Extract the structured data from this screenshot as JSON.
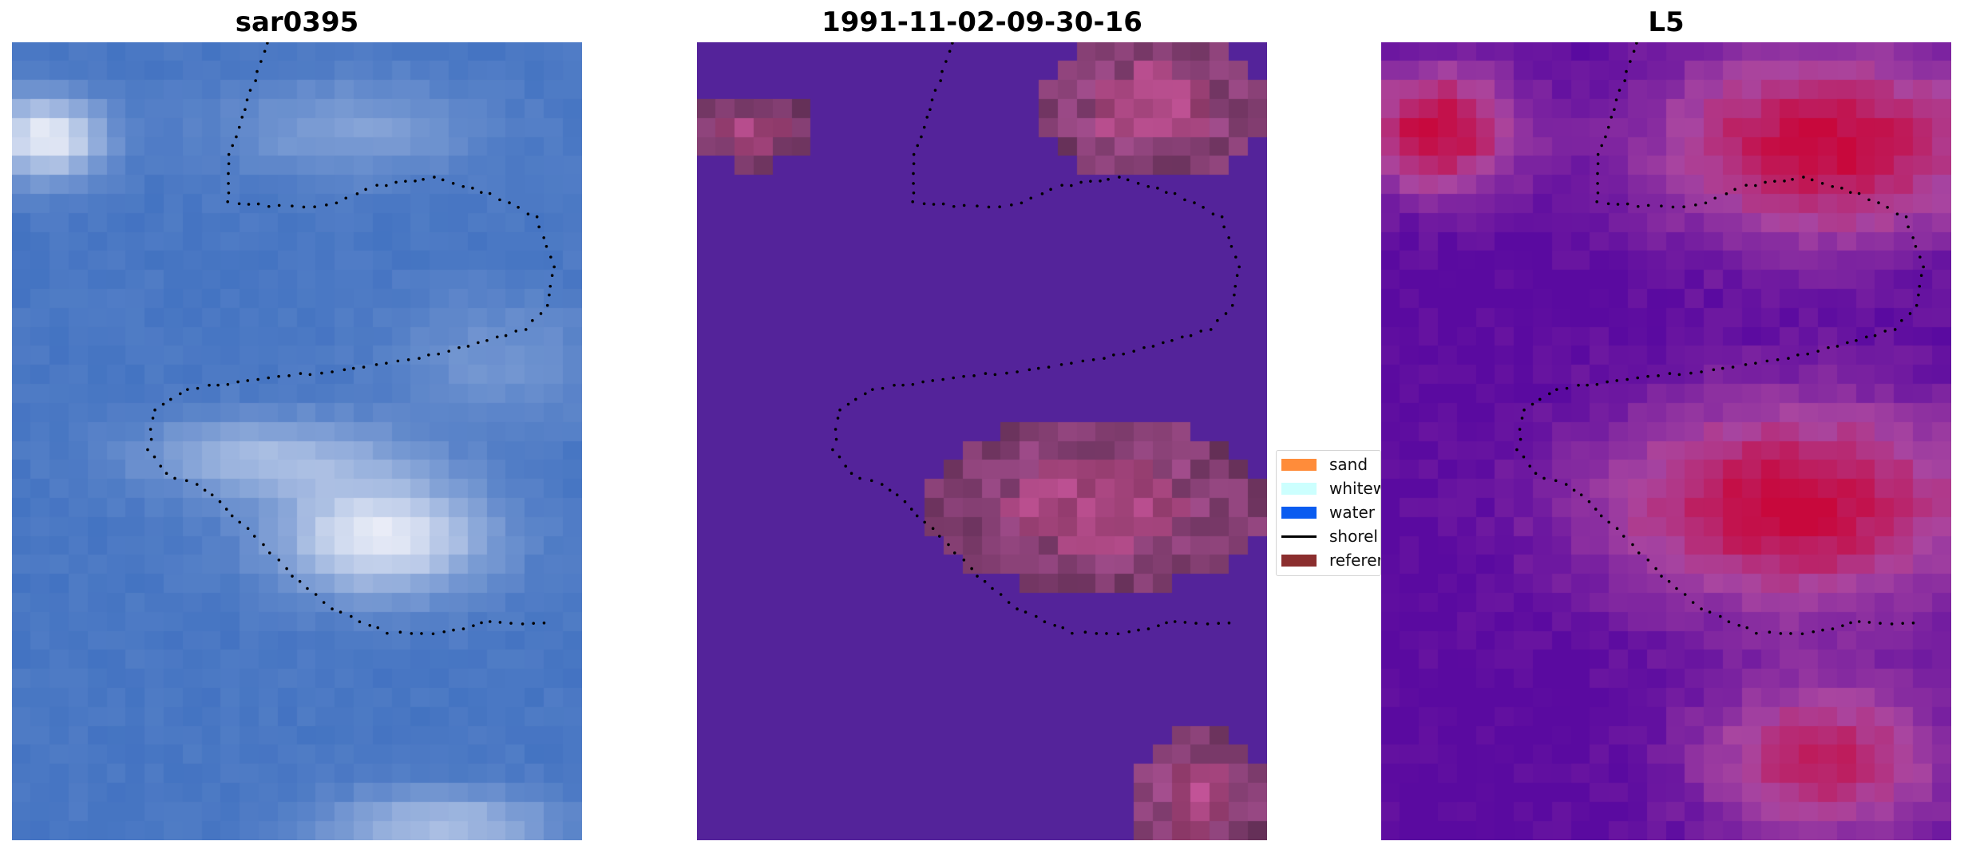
{
  "panels": [
    {
      "title": "sar0395",
      "style": "rgb"
    },
    {
      "title": "1991-11-02-09-30-16",
      "style": "classified"
    },
    {
      "title": "L5",
      "style": "probability"
    }
  ],
  "legend": {
    "items": [
      {
        "label": "sand",
        "color": "#ff8c3a",
        "kind": "patch"
      },
      {
        "label": "whitew",
        "color": "#ccfffe",
        "kind": "patch"
      },
      {
        "label": "water",
        "color": "#0a5cf0",
        "kind": "patch"
      },
      {
        "label": "shorel",
        "color": "#000000",
        "kind": "line"
      },
      {
        "label": "referer",
        "color": "#8b2e2e",
        "kind": "patch"
      }
    ]
  },
  "colors": {
    "water_purple": "#54239a",
    "pink_overlay": "#a44e8e",
    "rgb_base": "#4a78c4",
    "prob_low": "#5a0aa0",
    "prob_high": "#c8083c",
    "shoreline": "#000000"
  }
}
